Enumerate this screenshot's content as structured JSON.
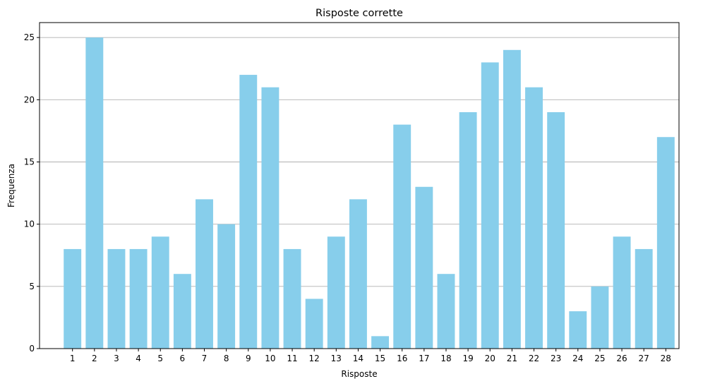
{
  "chart_data": {
    "type": "bar",
    "title": "Risposte corrette",
    "xlabel": "Risposte",
    "ylabel": "Frequenza",
    "categories": [
      "1",
      "2",
      "3",
      "4",
      "5",
      "6",
      "7",
      "8",
      "9",
      "10",
      "11",
      "12",
      "13",
      "14",
      "15",
      "16",
      "17",
      "18",
      "19",
      "20",
      "21",
      "22",
      "23",
      "24",
      "25",
      "26",
      "27",
      "28"
    ],
    "values": [
      8,
      25,
      8,
      8,
      9,
      6,
      12,
      10,
      22,
      21,
      8,
      4,
      9,
      12,
      1,
      18,
      13,
      6,
      19,
      23,
      24,
      21,
      19,
      3,
      5,
      9,
      8,
      17
    ],
    "ylim": [
      0,
      26.2
    ],
    "yticks": [
      0,
      5,
      10,
      15,
      20,
      25
    ],
    "grid": "y",
    "legend": "none",
    "bar_color": "#87CEEB",
    "grid_color": "#b0b0b0"
  }
}
